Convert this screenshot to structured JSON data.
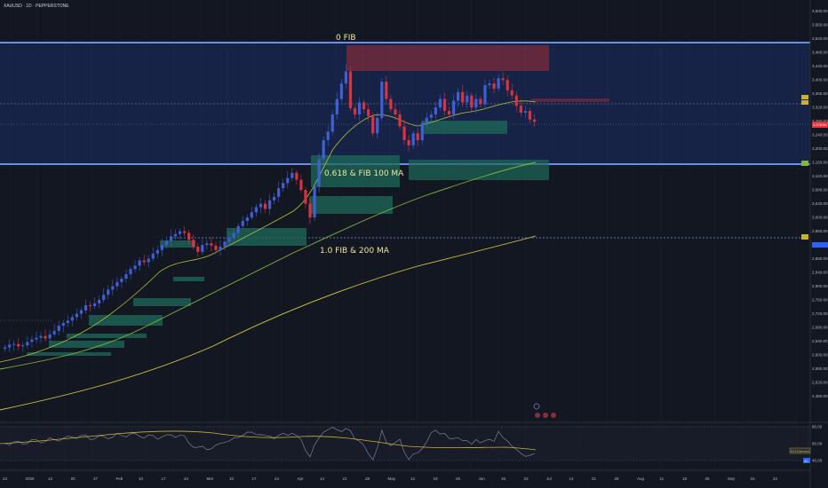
{
  "header": {
    "title": "XAUUSD · 1D · PEPPERSTONE"
  },
  "colors": {
    "bg": "#131722",
    "fibBand": "#1e3a8a",
    "fibLine": "#6b8fe8",
    "bull": "#3f5fd8",
    "bear": "#d8343f",
    "ma20": "#b8bc3c",
    "ma100": "#7fb83c",
    "ma200": "#d8c93c",
    "zone": "#1e6a58",
    "supply": "#8c2c3a",
    "rsi": "#8a8fa8",
    "rsiMa": "#c9b036",
    "priceTag": "#e8333f",
    "levelTag": "#c9b036"
  },
  "annotations": {
    "fib0": "0  FIB",
    "fib618": "0.618 & FIB 100 MA",
    "fib1": "1.0  FIB & 200 MA"
  },
  "price_axis": {
    "ticks": [
      "3,600.00",
      "3,560.00",
      "3,520.00",
      "3,480.00",
      "3,440.00",
      "3,400.00",
      "3,360.00",
      "3,320.00",
      "3,280.00",
      "3,240.00",
      "3,200.00",
      "3,160.00",
      "3,120.00",
      "3,080.00",
      "3,040.00",
      "3,000.00",
      "2,960.00",
      "2,920.00",
      "2,880.00",
      "2,840.00",
      "2,800.00",
      "2,760.00",
      "2,720.00",
      "2,680.00",
      "2,640.00",
      "2,600.00",
      "2,560.00",
      "2,520.00",
      "2,480.00"
    ],
    "current_price_tag": "3,278.00"
  },
  "rsi_axis": {
    "ticks": [
      "80.00",
      "60.00",
      "40.00"
    ],
    "level_label": "RSI Extended",
    "value_tag": "40"
  },
  "time_axis": {
    "labels": [
      "24",
      "2025",
      "13",
      "20",
      "27",
      "Feb",
      "10",
      "17",
      "24",
      "Mar",
      "10",
      "17",
      "24",
      "Apr",
      "14",
      "21",
      "28",
      "May",
      "12",
      "19",
      "26",
      "Jun",
      "16",
      "23",
      "Jul",
      "14",
      "21",
      "28",
      "Aug",
      "11",
      "18",
      "25",
      "Sep",
      "15",
      "22"
    ]
  },
  "chart_data": {
    "type": "candlestick",
    "symbol": "XAUUSD",
    "timeframe": "1D",
    "source": "PEPPERSTONE",
    "ylim": [
      2440,
      3620
    ],
    "fib_levels": [
      {
        "label": "0  FIB",
        "value": 3500
      },
      {
        "label": "0.618 & FIB 100 MA",
        "value": 3170
      },
      {
        "label": "1.0  FIB & 200 MA",
        "value": 2956
      }
    ],
    "closes": [
      2622,
      2630,
      2632,
      2625,
      2628,
      2638,
      2645,
      2650,
      2655,
      2648,
      2660,
      2670,
      2685,
      2693,
      2700,
      2710,
      2720,
      2730,
      2745,
      2742,
      2750,
      2760,
      2775,
      2790,
      2800,
      2812,
      2822,
      2835,
      2850,
      2860,
      2875,
      2870,
      2880,
      2895,
      2905,
      2920,
      2932,
      2945,
      2952,
      2960,
      2955,
      2935,
      2915,
      2900,
      2920,
      2925,
      2918,
      2905,
      2915,
      2930,
      2940,
      2955,
      2975,
      2990,
      3000,
      3015,
      3030,
      3040,
      3025,
      3050,
      3060,
      3085,
      3100,
      3115,
      3130,
      3110,
      3080,
      3040,
      3000,
      3090,
      3170,
      3225,
      3250,
      3300,
      3345,
      3390,
      3425,
      3318,
      3300,
      3335,
      3315,
      3295,
      3245,
      3290,
      3395,
      3345,
      3315,
      3300,
      3265,
      3225,
      3210,
      3245,
      3225,
      3275,
      3290,
      3300,
      3320,
      3345,
      3310,
      3300,
      3340,
      3365,
      3335,
      3355,
      3320,
      3345,
      3330,
      3385,
      3390,
      3375,
      3405,
      3400,
      3370,
      3355,
      3325,
      3305,
      3310,
      3285,
      3278
    ]
  }
}
